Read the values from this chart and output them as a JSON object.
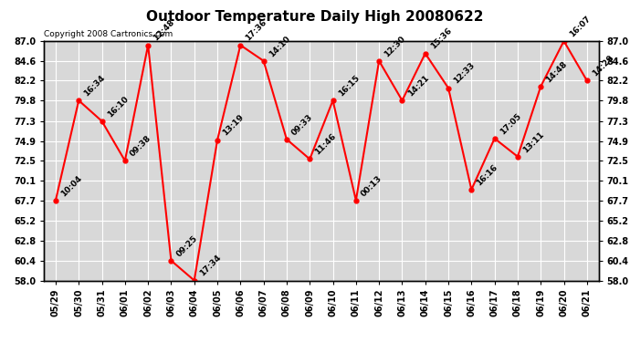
{
  "title": "Outdoor Temperature Daily High 20080622",
  "copyright": "Copyright 2008 Cartronics.com",
  "x_labels": [
    "05/29",
    "05/30",
    "05/31",
    "06/01",
    "06/02",
    "06/03",
    "06/04",
    "06/05",
    "06/06",
    "06/07",
    "06/08",
    "06/09",
    "06/10",
    "06/11",
    "06/12",
    "06/13",
    "06/14",
    "06/15",
    "06/16",
    "06/17",
    "06/18",
    "06/19",
    "06/20",
    "06/21"
  ],
  "y_values": [
    67.7,
    79.8,
    77.3,
    72.5,
    86.5,
    60.4,
    58.0,
    75.0,
    86.5,
    84.6,
    75.1,
    72.7,
    79.8,
    67.7,
    84.6,
    79.8,
    85.5,
    81.3,
    69.0,
    75.2,
    73.0,
    81.5,
    87.0,
    82.2
  ],
  "point_labels": [
    "10:04",
    "16:34",
    "16:10",
    "09:38",
    "12:48",
    "09:25",
    "17:34",
    "13:19",
    "17:36",
    "14:10",
    "09:33",
    "11:46",
    "16:15",
    "00:13",
    "12:30",
    "14:21",
    "15:36",
    "12:33",
    "16:16",
    "17:05",
    "13:11",
    "14:48",
    "16:07",
    "14:29"
  ],
  "ylim": [
    58.0,
    87.0
  ],
  "yticks": [
    58.0,
    60.4,
    62.8,
    65.2,
    67.7,
    70.1,
    72.5,
    74.9,
    77.3,
    79.8,
    82.2,
    84.6,
    87.0
  ],
  "line_color": "#ff0000",
  "marker_color": "#ff0000",
  "bg_color": "#ffffff",
  "plot_bg_color": "#d8d8d8",
  "grid_color": "#ffffff",
  "title_fontsize": 11,
  "tick_fontsize": 7,
  "copyright_fontsize": 6.5,
  "annotation_fontsize": 6.5
}
